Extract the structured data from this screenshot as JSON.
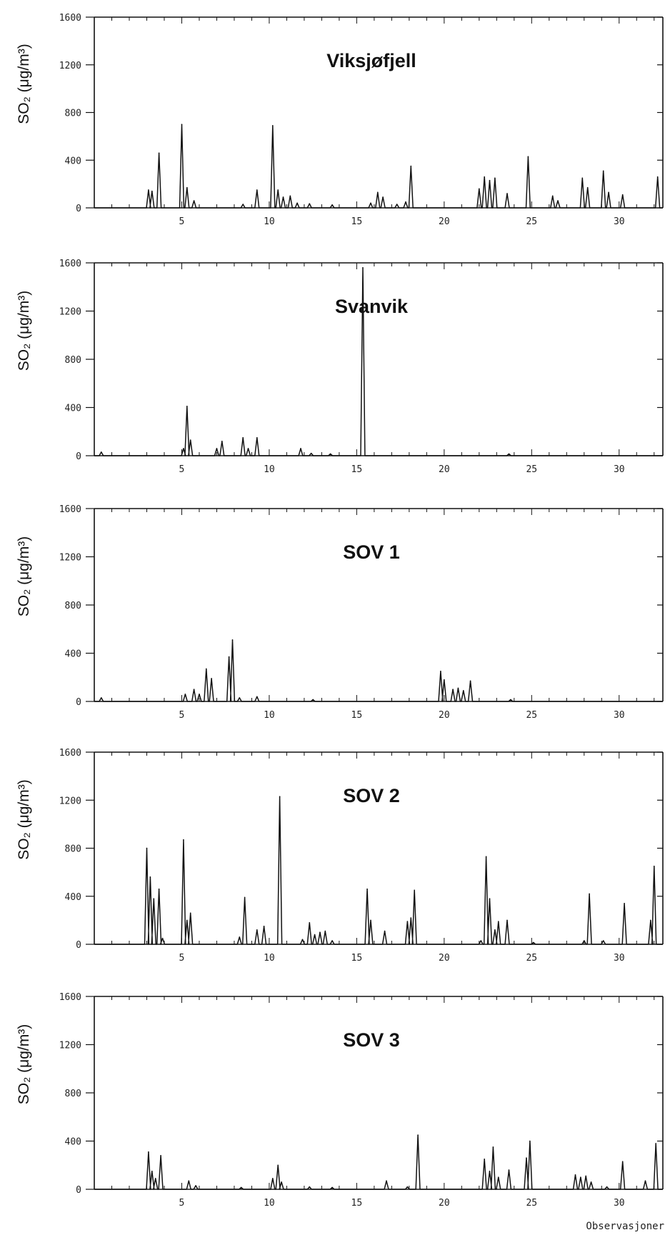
{
  "footer_label": "Observasjoner",
  "chart_data": [
    {
      "type": "line",
      "title": "Viksjøfjell",
      "ylabel": "SO₂ (μg/m³)",
      "xlabel": "",
      "xlim": [
        0,
        32.5
      ],
      "ylim": [
        0,
        1600
      ],
      "xticks": [
        5,
        10,
        15,
        20,
        25,
        30
      ],
      "yticks": [
        0,
        400,
        800,
        1200,
        1600
      ],
      "peaks": [
        [
          3.1,
          150
        ],
        [
          3.3,
          140
        ],
        [
          3.7,
          460
        ],
        [
          5.0,
          700
        ],
        [
          5.3,
          170
        ],
        [
          5.7,
          60
        ],
        [
          8.5,
          30
        ],
        [
          9.3,
          150
        ],
        [
          10.2,
          690
        ],
        [
          10.5,
          150
        ],
        [
          10.8,
          90
        ],
        [
          11.2,
          100
        ],
        [
          11.6,
          40
        ],
        [
          12.3,
          35
        ],
        [
          13.6,
          25
        ],
        [
          15.8,
          40
        ],
        [
          16.2,
          130
        ],
        [
          16.5,
          90
        ],
        [
          17.3,
          30
        ],
        [
          17.8,
          50
        ],
        [
          18.1,
          350
        ],
        [
          22.0,
          160
        ],
        [
          22.3,
          260
        ],
        [
          22.6,
          230
        ],
        [
          22.9,
          250
        ],
        [
          23.6,
          120
        ],
        [
          24.8,
          430
        ],
        [
          26.2,
          100
        ],
        [
          26.5,
          60
        ],
        [
          27.9,
          250
        ],
        [
          28.2,
          170
        ],
        [
          29.1,
          310
        ],
        [
          29.4,
          130
        ],
        [
          30.2,
          110
        ],
        [
          32.2,
          260
        ]
      ]
    },
    {
      "type": "line",
      "title": "Svanvik",
      "ylabel": "SO₂ (μg/m³)",
      "xlabel": "",
      "xlim": [
        0,
        32.5
      ],
      "ylim": [
        0,
        1600
      ],
      "xticks": [
        5,
        10,
        15,
        20,
        25,
        30
      ],
      "yticks": [
        0,
        400,
        800,
        1200,
        1600
      ],
      "peaks": [
        [
          0.4,
          30
        ],
        [
          5.1,
          60
        ],
        [
          5.3,
          410
        ],
        [
          5.5,
          130
        ],
        [
          7.0,
          60
        ],
        [
          7.3,
          120
        ],
        [
          8.5,
          150
        ],
        [
          8.8,
          60
        ],
        [
          9.3,
          150
        ],
        [
          11.8,
          60
        ],
        [
          12.4,
          20
        ],
        [
          13.5,
          15
        ],
        [
          15.35,
          1560
        ],
        [
          23.7,
          15
        ]
      ]
    },
    {
      "type": "line",
      "title": "SOV 1",
      "ylabel": "SO₂ (μg/m³)",
      "xlabel": "",
      "xlim": [
        0,
        32.5
      ],
      "ylim": [
        0,
        1600
      ],
      "xticks": [
        5,
        10,
        15,
        20,
        25,
        30
      ],
      "yticks": [
        0,
        400,
        800,
        1200,
        1600
      ],
      "peaks": [
        [
          0.4,
          30
        ],
        [
          5.2,
          60
        ],
        [
          5.7,
          100
        ],
        [
          6.0,
          60
        ],
        [
          6.4,
          270
        ],
        [
          6.7,
          190
        ],
        [
          7.7,
          370
        ],
        [
          7.9,
          510
        ],
        [
          8.3,
          30
        ],
        [
          9.3,
          40
        ],
        [
          12.5,
          15
        ],
        [
          19.8,
          250
        ],
        [
          20.0,
          180
        ],
        [
          20.5,
          100
        ],
        [
          20.8,
          110
        ],
        [
          21.1,
          90
        ],
        [
          21.5,
          170
        ],
        [
          23.8,
          15
        ]
      ]
    },
    {
      "type": "line",
      "title": "SOV 2",
      "ylabel": "SO₂ (μg/m³)",
      "xlabel": "",
      "xlim": [
        0,
        32.5
      ],
      "ylim": [
        0,
        1600
      ],
      "xticks": [
        5,
        10,
        15,
        20,
        25,
        30
      ],
      "yticks": [
        0,
        400,
        800,
        1200,
        1600
      ],
      "peaks": [
        [
          3.0,
          800
        ],
        [
          3.2,
          560
        ],
        [
          3.4,
          380
        ],
        [
          3.7,
          460
        ],
        [
          3.9,
          50
        ],
        [
          5.1,
          870
        ],
        [
          5.3,
          200
        ],
        [
          5.5,
          260
        ],
        [
          8.3,
          60
        ],
        [
          8.6,
          390
        ],
        [
          9.3,
          120
        ],
        [
          9.7,
          150
        ],
        [
          10.6,
          1230
        ],
        [
          11.9,
          40
        ],
        [
          12.3,
          180
        ],
        [
          12.6,
          80
        ],
        [
          12.9,
          100
        ],
        [
          13.2,
          110
        ],
        [
          13.6,
          30
        ],
        [
          15.6,
          460
        ],
        [
          15.8,
          200
        ],
        [
          16.6,
          110
        ],
        [
          17.9,
          190
        ],
        [
          18.1,
          220
        ],
        [
          18.3,
          450
        ],
        [
          22.1,
          30
        ],
        [
          22.4,
          730
        ],
        [
          22.6,
          380
        ],
        [
          22.9,
          120
        ],
        [
          23.1,
          190
        ],
        [
          23.6,
          200
        ],
        [
          25.1,
          15
        ],
        [
          28.0,
          30
        ],
        [
          28.3,
          420
        ],
        [
          29.1,
          30
        ],
        [
          30.3,
          340
        ],
        [
          31.8,
          200
        ],
        [
          32.0,
          650
        ]
      ]
    },
    {
      "type": "line",
      "title": "SOV 3",
      "ylabel": "SO₂ (μg/m³)",
      "xlabel": "",
      "xlim": [
        0,
        32.5
      ],
      "ylim": [
        0,
        1600
      ],
      "xticks": [
        5,
        10,
        15,
        20,
        25,
        30
      ],
      "yticks": [
        0,
        400,
        800,
        1200,
        1600
      ],
      "peaks": [
        [
          3.1,
          310
        ],
        [
          3.3,
          150
        ],
        [
          3.5,
          90
        ],
        [
          3.8,
          280
        ],
        [
          5.4,
          70
        ],
        [
          5.8,
          30
        ],
        [
          8.4,
          15
        ],
        [
          10.2,
          90
        ],
        [
          10.5,
          200
        ],
        [
          10.7,
          60
        ],
        [
          12.3,
          20
        ],
        [
          13.6,
          15
        ],
        [
          16.7,
          70
        ],
        [
          17.9,
          20
        ],
        [
          18.5,
          450
        ],
        [
          22.3,
          250
        ],
        [
          22.6,
          150
        ],
        [
          22.8,
          350
        ],
        [
          23.1,
          100
        ],
        [
          23.7,
          160
        ],
        [
          24.7,
          260
        ],
        [
          24.9,
          400
        ],
        [
          27.5,
          120
        ],
        [
          27.8,
          100
        ],
        [
          28.1,
          110
        ],
        [
          28.4,
          60
        ],
        [
          29.3,
          20
        ],
        [
          30.2,
          230
        ],
        [
          31.5,
          70
        ],
        [
          32.1,
          380
        ]
      ]
    }
  ]
}
